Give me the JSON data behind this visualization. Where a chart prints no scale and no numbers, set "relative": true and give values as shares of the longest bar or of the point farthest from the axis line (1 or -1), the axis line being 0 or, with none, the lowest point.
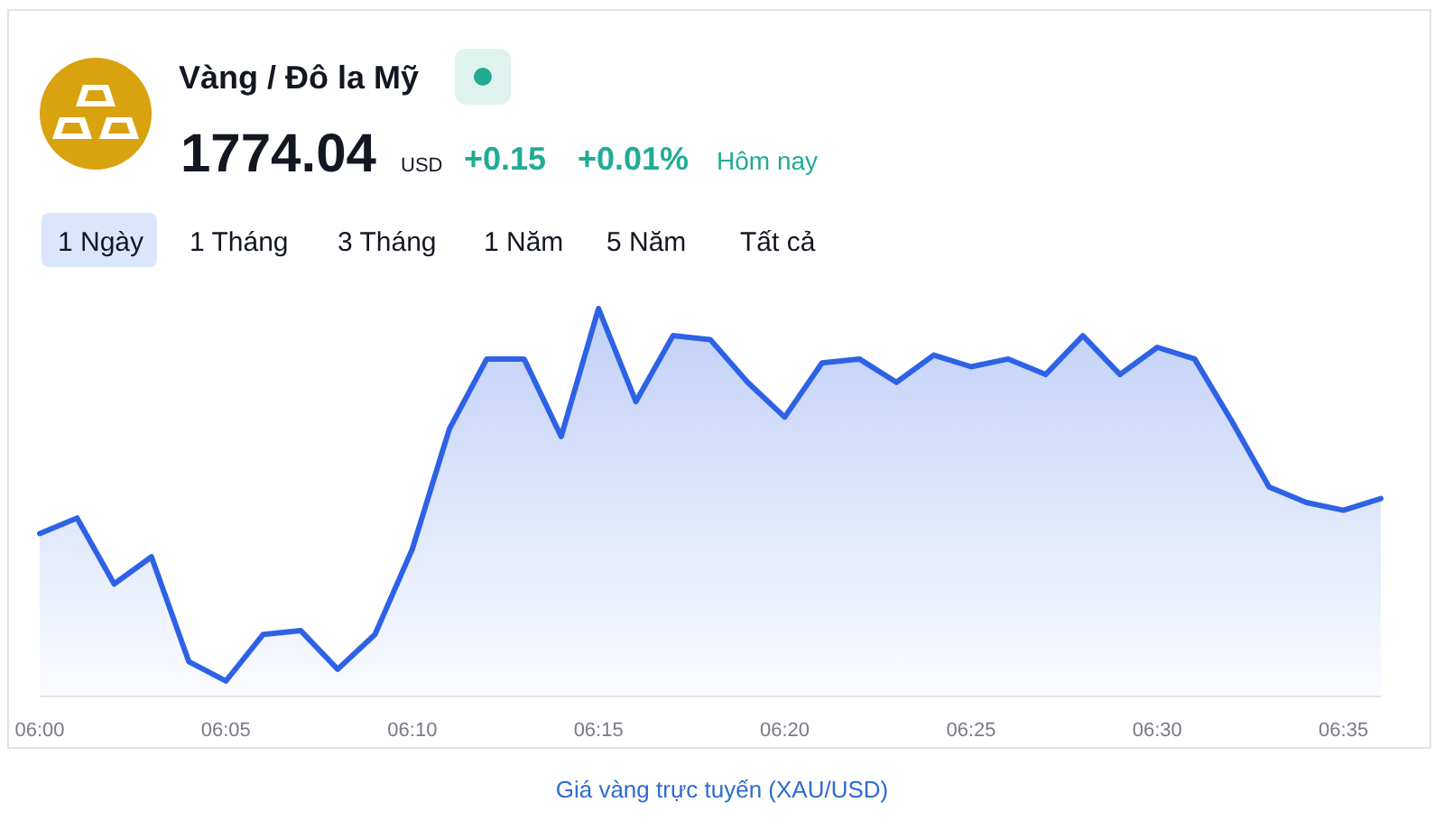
{
  "chart_data": {
    "type": "area",
    "title": "Vàng / Đô la Mỹ",
    "annotations": [
      "1774.04",
      "USD",
      "+0.15",
      "+0.01%",
      "Hôm nay",
      "1 Ngày",
      "1 Tháng",
      "3 Tháng",
      "1 Năm",
      "5 Năm",
      "Tất cả",
      "Giá vàng trực tuyến (XAU/USD)"
    ],
    "relative": true,
    "color": "#2e62e6",
    "x": [
      6,
      6.0167,
      6.0333,
      6.05,
      6.0667,
      6.0833,
      6.1,
      6.1167,
      6.1333,
      6.15,
      6.1667,
      6.1833,
      6.2,
      6.2167,
      6.2333,
      6.25,
      6.2667,
      6.2833,
      6.3,
      6.3167,
      6.3333,
      6.35,
      6.3667,
      6.3833,
      6.4,
      6.4167,
      6.4333,
      6.45,
      6.4667,
      6.4833,
      6.5,
      6.5167,
      6.5333,
      6.55,
      6.5667,
      6.5833,
      6.6
    ],
    "values": [
      0.42,
      0.46,
      0.29,
      0.36,
      0.09,
      0.04,
      0.16,
      0.17,
      0.07,
      0.16,
      0.38,
      0.69,
      0.87,
      0.87,
      0.67,
      1,
      0.76,
      0.93,
      0.92,
      0.81,
      0.72,
      0.86,
      0.87,
      0.81,
      0.88,
      0.85,
      0.87,
      0.83,
      0.93,
      0.83,
      0.9,
      0.87,
      0.71,
      0.54,
      0.5,
      0.48,
      0.51
    ],
    "xlim": [
      6,
      6.6
    ],
    "xticks": [
      {
        "value": 6,
        "label": "06:00"
      },
      {
        "value": 6.0833,
        "label": "06:05"
      },
      {
        "value": 6.1667,
        "label": "06:10"
      },
      {
        "value": 6.25,
        "label": "06:15"
      },
      {
        "value": 6.3333,
        "label": "06:20"
      },
      {
        "value": 6.4167,
        "label": "06:25"
      },
      {
        "value": 6.5,
        "label": "06:30"
      },
      {
        "value": 6.5833,
        "label": "06:35"
      }
    ]
  }
}
